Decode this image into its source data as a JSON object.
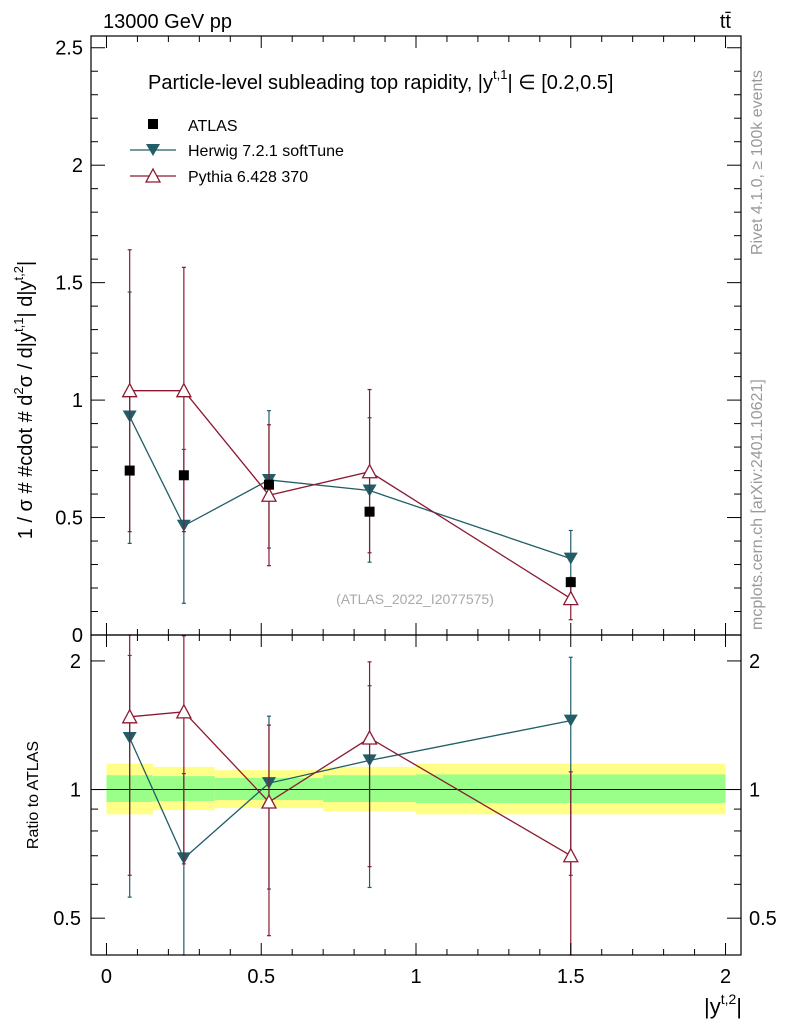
{
  "header": {
    "energy_label": "13000 GeV pp",
    "process_label": "tt̄"
  },
  "side_labels": {
    "rivet": "Rivet 4.1.0, ≥ 100k events",
    "mcplots": "mcplots.cern.ch [arXiv:2401.10621]"
  },
  "watermark": "(ATLAS_2022_I2077575)",
  "chart_data": [
    {
      "type": "scatter",
      "panel": "main",
      "title": "Particle-level subleading top rapidity, |y^{t,1}| ∈ [0.2,0.5]",
      "title_text": "Particle-level subleading top rapidity, |y",
      "title_sup": "t,1",
      "title_suffix": "| ∈ [0.2,0.5]",
      "ylabel": "1 / σ # #cdot # d²σ / d|y^{t,1}| d|y^{t,2}|",
      "ylabel_text": "1 / σ # #cdot # d",
      "ylabel_sup2": "2",
      "ylabel_mid": "σ / d|y",
      "ylabel_sup_t1": "t,1",
      "ylabel_mid2": "| d|y",
      "ylabel_sup_t2": "t,2",
      "ylabel_end": "|",
      "xlim": [
        -0.05,
        2.05
      ],
      "ylim": [
        0,
        2.55
      ],
      "yticks": [
        0,
        0.5,
        1,
        1.5,
        2,
        2.5
      ],
      "ytick_labels": [
        "0",
        "0.5",
        "1",
        "1.5",
        "2",
        "2.5"
      ],
      "legend_position": "top-left",
      "series": [
        {
          "name": "ATLAS",
          "marker": "filled-square",
          "color": "#000000",
          "x": [
            0.075,
            0.25,
            0.525,
            0.85,
            1.5
          ],
          "y": [
            0.7,
            0.68,
            0.64,
            0.525,
            0.225
          ],
          "yerr_low": [
            0,
            0,
            0,
            0,
            0
          ],
          "yerr_high": [
            0,
            0,
            0,
            0,
            0
          ]
        },
        {
          "name": "Herwig 7.2.1 softTune",
          "marker": "filled-triangle-down",
          "color": "#215e68",
          "x": [
            0.075,
            0.25,
            0.525,
            0.85,
            1.5
          ],
          "y": [
            0.93,
            0.465,
            0.66,
            0.615,
            0.325
          ],
          "yerr_low": [
            0.54,
            0.33,
            0.29,
            0.305,
            0.185
          ],
          "yerr_high": [
            0.53,
            0.325,
            0.295,
            0.31,
            0.12
          ]
        },
        {
          "name": "Pythia 6.428 370",
          "marker": "open-triangle-up",
          "color": "#8b1a30",
          "x": [
            0.075,
            0.25,
            0.525,
            0.85,
            1.5
          ],
          "y": [
            1.04,
            1.04,
            0.595,
            0.695,
            0.155
          ],
          "yerr_low": [
            0.6,
            0.6,
            0.3,
            0.345,
            0.09
          ],
          "yerr_high": [
            0.6,
            0.525,
            0.3,
            0.35,
            0.09
          ]
        }
      ]
    },
    {
      "type": "scatter",
      "panel": "ratio",
      "ylabel": "Ratio to ATLAS",
      "xlabel": "|y^{t,2}|",
      "xlabel_text": "|y",
      "xlabel_sup": "t,2",
      "xlabel_end": "|",
      "xlim": [
        -0.05,
        2.05
      ],
      "ylim": [
        0.41,
        2.3
      ],
      "yscale": "log",
      "xticks": [
        0,
        0.5,
        1,
        1.5,
        2
      ],
      "xtick_labels": [
        "0",
        "0.5",
        "1",
        "1.5",
        "2"
      ],
      "yticks": [
        0.5,
        1,
        2
      ],
      "ytick_labels": [
        "0.5",
        "1",
        "2"
      ],
      "reference_line": 1,
      "bands": {
        "bin_edges": [
          0,
          0.15,
          0.35,
          0.7,
          1.0,
          2.0
        ],
        "total_low": [
          0.875,
          0.895,
          0.905,
          0.89,
          0.875
        ],
        "total_high": [
          1.15,
          1.13,
          1.11,
          1.13,
          1.15
        ],
        "stat_low": [
          0.935,
          0.94,
          0.945,
          0.935,
          0.93
        ],
        "stat_high": [
          1.08,
          1.075,
          1.065,
          1.08,
          1.085
        ],
        "total_color": "#ffff88",
        "stat_color": "#99ff88"
      },
      "series": [
        {
          "name": "Herwig 7.2.1 softTune",
          "color": "#215e68",
          "x": [
            0.075,
            0.25,
            0.525,
            0.85,
            1.5
          ],
          "y": [
            1.32,
            0.69,
            1.035,
            1.17,
            1.45
          ],
          "yerr_low": [
            0.76,
            0.4,
            0.45,
            0.58,
            0.82
          ],
          "yerr_high": [
            0.74,
            0.4,
            0.45,
            0.58,
            0.59
          ]
        },
        {
          "name": "Pythia 6.428 370",
          "color": "#8b1a30",
          "x": [
            0.075,
            0.25,
            0.525,
            0.85,
            1.5
          ],
          "y": [
            1.48,
            1.52,
            0.935,
            1.32,
            0.7
          ],
          "yerr_low": [
            0.85,
            0.85,
            0.48,
            0.66,
            0.38
          ],
          "yerr_high": [
            0.85,
            0.77,
            0.48,
            0.67,
            0.4
          ]
        }
      ]
    }
  ]
}
